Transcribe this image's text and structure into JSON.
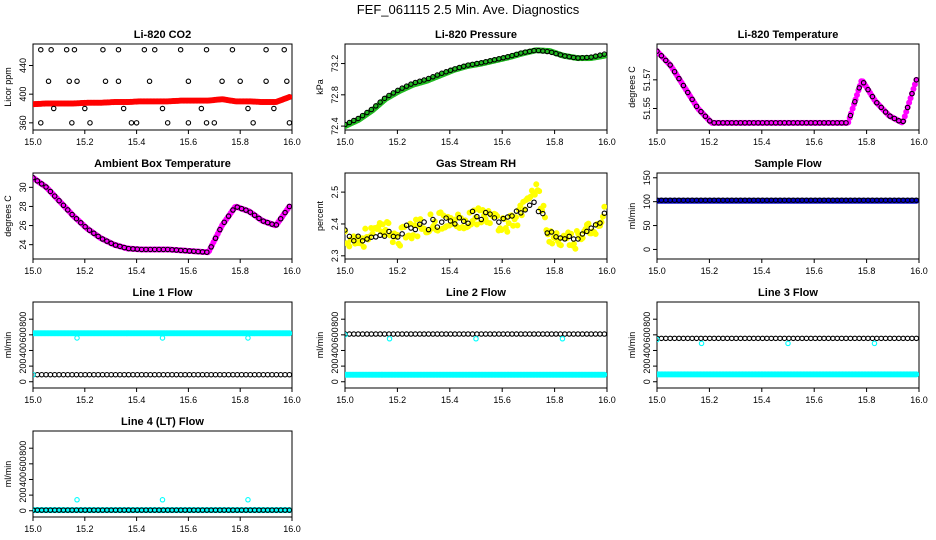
{
  "page": {
    "title": "FEF_061115  2.5 Min. Ave. Diagnostics"
  },
  "colors": {
    "black": "#000000",
    "red": "#ff0000",
    "green": "#22bb22",
    "magenta": "#ff00ff",
    "yellow": "#ffff00",
    "blue": "#0000cc",
    "cyan": "#00ffff"
  },
  "chart_data": [
    {
      "id": "co2",
      "type": "scatter",
      "title": "Li-820 CO2",
      "ylabel": "Licor ppm",
      "xlim": [
        15.0,
        16.0
      ],
      "ylim": [
        350,
        470
      ],
      "xticks": [
        15.0,
        15.2,
        15.4,
        15.6,
        15.8,
        16.0
      ],
      "yticks": [
        360,
        400,
        440
      ],
      "series": [
        {
          "name": "fill",
          "color": "red",
          "filled": true,
          "x_range": [
            15.0,
            15.99
          ],
          "y": [
            386,
            387,
            387,
            387,
            388,
            388,
            389,
            389,
            390,
            390,
            390,
            391,
            391,
            391,
            393,
            390,
            390,
            389,
            389,
            396
          ]
        },
        {
          "name": "outliers",
          "color": "black",
          "filled": false,
          "points": [
            [
              15.03,
              462
            ],
            [
              15.03,
              360
            ],
            [
              15.07,
              462
            ],
            [
              15.06,
              418
            ],
            [
              15.08,
              380
            ],
            [
              15.13,
              462
            ],
            [
              15.16,
              462
            ],
            [
              15.14,
              418
            ],
            [
              15.17,
              418
            ],
            [
              15.15,
              360
            ],
            [
              15.2,
              380
            ],
            [
              15.22,
              360
            ],
            [
              15.27,
              462
            ],
            [
              15.28,
              418
            ],
            [
              15.33,
              418
            ],
            [
              15.33,
              462
            ],
            [
              15.35,
              380
            ],
            [
              15.38,
              360
            ],
            [
              15.4,
              360
            ],
            [
              15.43,
              462
            ],
            [
              15.45,
              418
            ],
            [
              15.47,
              462
            ],
            [
              15.5,
              380
            ],
            [
              15.52,
              360
            ],
            [
              15.57,
              462
            ],
            [
              15.6,
              418
            ],
            [
              15.6,
              360
            ],
            [
              15.65,
              380
            ],
            [
              15.67,
              462
            ],
            [
              15.67,
              360
            ],
            [
              15.7,
              360
            ],
            [
              15.73,
              418
            ],
            [
              15.77,
              462
            ],
            [
              15.8,
              418
            ],
            [
              15.83,
              380
            ],
            [
              15.85,
              360
            ],
            [
              15.9,
              418
            ],
            [
              15.9,
              462
            ],
            [
              15.93,
              380
            ],
            [
              15.97,
              462
            ],
            [
              15.98,
              418
            ],
            [
              15.99,
              360
            ]
          ]
        }
      ]
    },
    {
      "id": "pressure",
      "type": "scatter",
      "title": "Li-820 Pressure",
      "ylabel": "kPa",
      "xlim": [
        15.0,
        16.0
      ],
      "ylim": [
        72.35,
        73.45
      ],
      "xticks": [
        15.0,
        15.2,
        15.4,
        15.6,
        15.8,
        16.0
      ],
      "yticks": [
        72.4,
        72.8,
        73.2
      ],
      "series": [
        {
          "name": "fill",
          "color": "green",
          "filled": true,
          "x_range": [
            15.0,
            15.99
          ],
          "y": [
            72.4,
            72.48,
            72.6,
            72.75,
            72.85,
            72.93,
            72.98,
            73.05,
            73.12,
            73.17,
            73.2,
            73.24,
            73.28,
            73.33,
            73.37,
            73.36,
            73.3,
            73.27,
            73.27,
            73.3
          ]
        },
        {
          "name": "avg",
          "color": "black",
          "filled": false,
          "x_range": [
            15.0,
            15.99
          ],
          "y": [
            72.42,
            72.5,
            72.62,
            72.77,
            72.87,
            72.95,
            73.0,
            73.07,
            73.13,
            73.18,
            73.21,
            73.25,
            73.29,
            73.34,
            73.37,
            73.35,
            73.3,
            73.27,
            73.28,
            73.32
          ]
        }
      ]
    },
    {
      "id": "li820temp",
      "type": "scatter",
      "title": "Li-820 Temperature",
      "ylabel": "degrees C",
      "xlim": [
        15.0,
        16.0
      ],
      "ylim": [
        51.535,
        51.595
      ],
      "xticks": [
        15.0,
        15.2,
        15.4,
        15.6,
        15.8,
        16.0
      ],
      "yticks": [
        51.55,
        51.57
      ],
      "series": [
        {
          "name": "fill",
          "color": "magenta",
          "filled": true,
          "x_range": [
            15.0,
            15.99
          ],
          "y": [
            51.59,
            51.58,
            51.565,
            51.55,
            51.54,
            51.54,
            51.54,
            51.54,
            51.54,
            51.54,
            51.54,
            51.54,
            51.54,
            51.54,
            51.54,
            51.57,
            51.555,
            51.545,
            51.54,
            51.57
          ]
        },
        {
          "name": "avg",
          "color": "black",
          "filled": false,
          "x_range": [
            15.0,
            15.99
          ],
          "y": [
            51.59,
            51.58,
            51.565,
            51.55,
            51.54,
            51.54,
            51.54,
            51.54,
            51.54,
            51.54,
            51.54,
            51.54,
            51.54,
            51.54,
            51.54,
            51.57,
            51.555,
            51.545,
            51.54,
            51.57
          ]
        }
      ]
    },
    {
      "id": "ambient",
      "type": "scatter",
      "title": "Ambient Box Temperature",
      "ylabel": "degrees C",
      "xlim": [
        15.0,
        16.0
      ],
      "ylim": [
        22.5,
        31.5
      ],
      "xticks": [
        15.0,
        15.2,
        15.4,
        15.6,
        15.8,
        16.0
      ],
      "yticks": [
        24,
        26,
        28,
        30
      ],
      "series": [
        {
          "name": "fill",
          "color": "magenta",
          "filled": true,
          "x_range": [
            15.0,
            15.99
          ],
          "y": [
            31,
            30,
            28.5,
            27,
            25.7,
            24.7,
            24,
            23.6,
            23.5,
            23.5,
            23.5,
            23.4,
            23.3,
            23.2,
            26,
            28,
            27.5,
            26.5,
            26,
            28
          ]
        },
        {
          "name": "avg",
          "color": "black",
          "filled": false,
          "x_range": [
            15.0,
            15.99
          ],
          "y": [
            31,
            30,
            28.5,
            27,
            25.7,
            24.7,
            24,
            23.6,
            23.5,
            23.5,
            23.5,
            23.4,
            23.3,
            23.2,
            26,
            28,
            27.5,
            26.5,
            26,
            28
          ]
        }
      ]
    },
    {
      "id": "rh",
      "type": "scatter",
      "title": "Gas Stream RH",
      "ylabel": "percent",
      "xlim": [
        15.0,
        16.0
      ],
      "ylim": [
        2.29,
        2.56
      ],
      "xticks": [
        15.0,
        15.2,
        15.4,
        15.6,
        15.8,
        16.0
      ],
      "yticks": [
        2.3,
        2.4,
        2.5
      ],
      "series": [
        {
          "name": "fill",
          "color": "yellow",
          "filled": true,
          "x_range": [
            15.0,
            15.99
          ],
          "noise": 0.03,
          "y": [
            2.36,
            2.35,
            2.37,
            2.38,
            2.36,
            2.38,
            2.4,
            2.41,
            2.4,
            2.42,
            2.43,
            2.41,
            2.4,
            2.44,
            2.52,
            2.36,
            2.34,
            2.35,
            2.38,
            2.43
          ]
        },
        {
          "name": "avg",
          "color": "black",
          "filled": false,
          "x_range": [
            15.0,
            15.99
          ],
          "noise": 0.02,
          "y": [
            2.37,
            2.36,
            2.37,
            2.38,
            2.37,
            2.39,
            2.4,
            2.41,
            2.41,
            2.42,
            2.42,
            2.41,
            2.41,
            2.44,
            2.47,
            2.36,
            2.35,
            2.35,
            2.38,
            2.44
          ]
        }
      ]
    },
    {
      "id": "sampleflow",
      "type": "scatter",
      "title": "Sample Flow",
      "ylabel": "ml/min",
      "xlim": [
        15.0,
        16.0
      ],
      "ylim": [
        -20,
        160
      ],
      "xticks": [
        15.0,
        15.2,
        15.4,
        15.6,
        15.8,
        16.0
      ],
      "yticks": [
        0,
        50,
        100,
        150
      ],
      "series": [
        {
          "name": "fill",
          "color": "blue",
          "filled": true,
          "x_range": [
            15.0,
            15.99
          ],
          "constant": 102
        },
        {
          "name": "avg",
          "color": "black",
          "filled": false,
          "x_range": [
            15.0,
            15.99
          ],
          "constant": 103
        }
      ]
    },
    {
      "id": "line1",
      "type": "scatter",
      "title": "Line 1 Flow",
      "ylabel": "ml/min",
      "xlim": [
        15.0,
        16.0
      ],
      "ylim": [
        -80,
        1020
      ],
      "xticks": [
        15.0,
        15.2,
        15.4,
        15.6,
        15.8,
        16.0
      ],
      "yticks": [
        0,
        200,
        400,
        600,
        800
      ],
      "series": [
        {
          "name": "fill",
          "color": "cyan",
          "filled": true,
          "x_range": [
            15.0,
            15.99
          ],
          "constant": 620
        },
        {
          "name": "avg",
          "color": "black",
          "filled": false,
          "x_range": [
            15.0,
            15.99
          ],
          "constant": 90
        },
        {
          "name": "dips",
          "color": "cyan",
          "filled": false,
          "points": [
            [
              15.0,
              90
            ],
            [
              15.17,
              560
            ],
            [
              15.5,
              560
            ],
            [
              15.83,
              560
            ]
          ]
        }
      ]
    },
    {
      "id": "line2",
      "type": "scatter",
      "title": "Line 2 Flow",
      "ylabel": "ml/min",
      "xlim": [
        15.0,
        16.0
      ],
      "ylim": [
        -80,
        1020
      ],
      "xticks": [
        15.0,
        15.2,
        15.4,
        15.6,
        15.8,
        16.0
      ],
      "yticks": [
        0,
        200,
        400,
        600,
        800
      ],
      "series": [
        {
          "name": "fill",
          "color": "cyan",
          "filled": true,
          "x_range": [
            15.0,
            15.99
          ],
          "constant": 90
        },
        {
          "name": "avg",
          "color": "black",
          "filled": false,
          "x_range": [
            15.0,
            15.99
          ],
          "constant": 610
        },
        {
          "name": "dips",
          "color": "cyan",
          "filled": false,
          "points": [
            [
              15.0,
              600
            ],
            [
              15.17,
              550
            ],
            [
              15.5,
              550
            ],
            [
              15.83,
              550
            ]
          ]
        }
      ]
    },
    {
      "id": "line3",
      "type": "scatter",
      "title": "Line 3 Flow",
      "ylabel": "ml/min",
      "xlim": [
        15.0,
        16.0
      ],
      "ylim": [
        -80,
        1020
      ],
      "xticks": [
        15.0,
        15.2,
        15.4,
        15.6,
        15.8,
        16.0
      ],
      "yticks": [
        0,
        200,
        400,
        600,
        800
      ],
      "series": [
        {
          "name": "fill",
          "color": "cyan",
          "filled": true,
          "x_range": [
            15.0,
            15.99
          ],
          "constant": 95
        },
        {
          "name": "avg",
          "color": "black",
          "filled": false,
          "x_range": [
            15.0,
            15.99
          ],
          "constant": 555
        },
        {
          "name": "dips",
          "color": "cyan",
          "filled": false,
          "points": [
            [
              15.0,
              540
            ],
            [
              15.17,
              490
            ],
            [
              15.5,
              490
            ],
            [
              15.83,
              490
            ]
          ]
        }
      ]
    },
    {
      "id": "line4",
      "type": "scatter",
      "title": "Line 4 (LT) Flow",
      "ylabel": "ml/min",
      "xlim": [
        15.0,
        16.0
      ],
      "ylim": [
        -80,
        1020
      ],
      "xticks": [
        15.0,
        15.2,
        15.4,
        15.6,
        15.8,
        16.0
      ],
      "yticks": [
        0,
        200,
        400,
        600,
        800
      ],
      "series": [
        {
          "name": "fill",
          "color": "cyan",
          "filled": true,
          "x_range": [
            15.0,
            15.99
          ],
          "constant": 8
        },
        {
          "name": "avg",
          "color": "black",
          "filled": false,
          "x_range": [
            15.0,
            15.99
          ],
          "constant": 8
        },
        {
          "name": "spikes",
          "color": "cyan",
          "filled": false,
          "points": [
            [
              15.17,
              140
            ],
            [
              15.5,
              140
            ],
            [
              15.83,
              140
            ]
          ]
        }
      ]
    }
  ]
}
